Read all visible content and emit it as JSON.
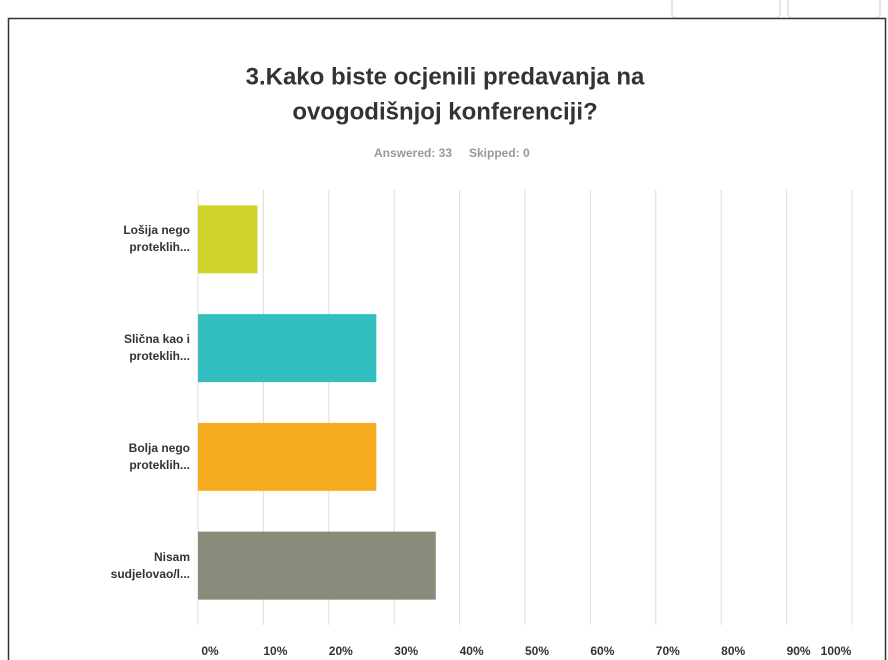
{
  "chart_data": {
    "type": "hbar",
    "title_lines": [
      "3.Kako biste ocjenili predavanja na",
      "ovogodišnjoj konferenciji?"
    ],
    "answered": "Answered: 33",
    "skipped": "Skipped: 0",
    "categories": [
      "Lošija nego proteklih...",
      "Slična kao i proteklih...",
      "Bolja nego proteklih...",
      "Nisam sudjelovao/l..."
    ],
    "values": [
      9.09,
      27.27,
      27.27,
      36.36
    ],
    "colors": [
      "#d0d32a",
      "#33bfbf",
      "#f5ad1f",
      "#8a8b7b"
    ],
    "xlim": [
      0,
      100
    ],
    "xticks": [
      {
        "value": 0,
        "label": "0%"
      },
      {
        "value": 10,
        "label": "10%"
      },
      {
        "value": 20,
        "label": "20%"
      },
      {
        "value": 30,
        "label": "30%"
      },
      {
        "value": 40,
        "label": "40%"
      },
      {
        "value": 50,
        "label": "50%"
      },
      {
        "value": 60,
        "label": "60%"
      },
      {
        "value": 70,
        "label": "70%"
      },
      {
        "value": 80,
        "label": "80%"
      },
      {
        "value": 90,
        "label": "90%"
      },
      {
        "value": 100,
        "label": "100%"
      }
    ],
    "grid": true
  }
}
